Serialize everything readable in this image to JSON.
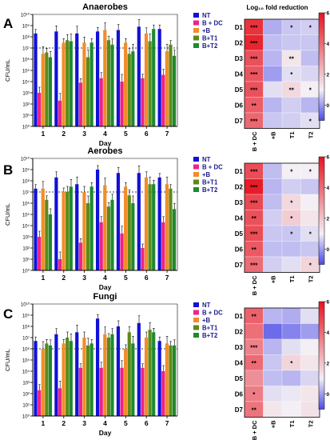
{
  "colors": {
    "NT": "#1111d6",
    "B + DC": "#ee2288",
    "+B": "#f28c28",
    "B+T1": "#5a8a1a",
    "B+T2": "#1e8a2e",
    "heat_low": "#4a4ae8",
    "heat_mid": "#f3eff4",
    "heat_high": "#e8131f"
  },
  "chart_data": [
    {
      "type": "bar",
      "panel_letter": "A",
      "title": "Anaerobes",
      "xlabel": "Day",
      "ylabel": "CFU/mL",
      "log_scale": true,
      "ylim": [
        1,
        10000000000
      ],
      "ytick_labels": [
        "10¹⁰",
        "10⁹",
        "10⁸",
        "10⁷",
        "10⁶",
        "10⁵",
        "10⁴",
        "10³",
        "10²",
        "10¹",
        "10⁰"
      ],
      "categories": [
        "1",
        "2",
        "3",
        "4",
        "5",
        "6",
        "7"
      ],
      "legend": [
        "NT",
        "B + DC",
        "+B",
        "B+T1",
        "B+T2"
      ],
      "legend_position": "top-right",
      "dashed_line_y": 10000000,
      "series": [
        {
          "name": "NT",
          "values": [
            200000000,
            300000000,
            200000000,
            300000000,
            400000000,
            800000000,
            500000000
          ]
        },
        {
          "name": "B + DC",
          "values": [
            1000,
            200,
            8000,
            20000,
            10000,
            20000,
            40000
          ]
        },
        {
          "name": "+B",
          "values": [
            3000000,
            30000000,
            30000000,
            400000000,
            30000000,
            200000000,
            5000000
          ]
        },
        {
          "name": "B+T1",
          "values": [
            4000000,
            50000000,
            1500000,
            50000000,
            3000000,
            40000000,
            20000000
          ]
        },
        {
          "name": "B+T2",
          "values": [
            1500000,
            40000000,
            30000000,
            20000000,
            5000000,
            500000000,
            2000000
          ]
        }
      ]
    },
    {
      "type": "bar",
      "panel_letter": "B",
      "title": "Aerobes",
      "xlabel": "Day",
      "ylabel": "CFU/mL",
      "log_scale": true,
      "ylim": [
        1,
        10000000000
      ],
      "ytick_labels": [
        "10¹⁰",
        "10⁹",
        "10⁸",
        "10⁷",
        "10⁶",
        "10⁵",
        "10⁴",
        "10³",
        "10²",
        "10¹",
        "10⁰"
      ],
      "categories": [
        "1",
        "2",
        "3",
        "4",
        "5",
        "6",
        "7"
      ],
      "legend": [
        "NT",
        "B + DC",
        "+B",
        "B+T1",
        "B+T2"
      ],
      "legend_position": "top-right",
      "dashed_line_y": 10000000,
      "series": [
        {
          "name": "NT",
          "values": [
            20000000,
            200000000,
            50000000,
            1000000000,
            500000000,
            500000000,
            200000000
          ]
        },
        {
          "name": "B + DC",
          "values": [
            1000,
            10,
            300,
            20000,
            2000,
            100,
            20000
          ]
        },
        {
          "name": "+B",
          "values": [
            20000000,
            10000000,
            10000000,
            40000000,
            30000000,
            200000000,
            50000000
          ]
        },
        {
          "name": "B+T1",
          "values": [
            2000000,
            10000000,
            1000000,
            500000,
            5000000,
            50000000,
            20000000
          ]
        },
        {
          "name": "B+T2",
          "values": [
            100000,
            30000000,
            30000000,
            2000000,
            1000000,
            50000000,
            300000
          ]
        }
      ]
    },
    {
      "type": "bar",
      "panel_letter": "C",
      "title": "Fungi",
      "xlabel": "Day",
      "ylabel": "CFU/mL",
      "log_scale": true,
      "ylim": [
        1,
        10000000000
      ],
      "ytick_labels": [
        "10¹⁰",
        "10⁹",
        "10⁸",
        "10⁷",
        "10⁶",
        "10⁵",
        "10⁴",
        "10³",
        "10²",
        "10¹",
        "10⁰"
      ],
      "categories": [
        "1",
        "2",
        "3",
        "4",
        "5",
        "6",
        "7"
      ],
      "legend": [
        "NT",
        "B + DC",
        "+B",
        "B+T1",
        "B+T2"
      ],
      "legend_position": "top-right",
      "dashed_line_y": 1000000,
      "series": [
        {
          "name": "NT",
          "values": [
            5000000,
            20000000,
            30000000,
            500000000,
            100000000,
            200000000,
            5000000
          ]
        },
        {
          "name": "B + DC",
          "values": [
            200,
            300,
            20000,
            20000,
            20000,
            20000,
            10000
          ]
        },
        {
          "name": "+B",
          "values": [
            1000000,
            3000000,
            10000000,
            20000000,
            1000000,
            10000000,
            3000000
          ]
        },
        {
          "name": "B+T1",
          "values": [
            3000000,
            10000000,
            2000000,
            10000000,
            30000000,
            50000000,
            2000000
          ]
        },
        {
          "name": "B+T2",
          "values": [
            2000000,
            5000000,
            3000000,
            20000000,
            3000000,
            30000000,
            2000000
          ]
        }
      ]
    },
    {
      "type": "heatmap",
      "title": "Log₁₀ fold reduction",
      "columns": [
        "B + DC",
        "+B",
        "T1",
        "T2"
      ],
      "rows": [
        "D1",
        "D2",
        "D3",
        "D4",
        "D5",
        "D6",
        "D7"
      ],
      "colorbar_ticks": [
        "6",
        "4",
        "2",
        "0"
      ],
      "vmin": -1,
      "vmax": 6,
      "values": [
        [
          5.3,
          0.2,
          0.5,
          0.6
        ],
        [
          5.6,
          0.4,
          0.5,
          0.5
        ],
        [
          4.6,
          0.3,
          1.2,
          0.4
        ],
        [
          4.5,
          0.0,
          0.8,
          0.7
        ],
        [
          4.6,
          0.8,
          1.5,
          1.0
        ],
        [
          4.3,
          0.3,
          0.6,
          0.3
        ],
        [
          4.1,
          0.5,
          0.6,
          0.8
        ]
      ],
      "annotations": [
        [
          "***",
          "",
          "*",
          "*"
        ],
        [
          "***",
          "",
          "",
          ""
        ],
        [
          "***",
          "",
          "**",
          ""
        ],
        [
          "***",
          "",
          "*",
          ""
        ],
        [
          "***",
          "",
          "**",
          "*"
        ],
        [
          "**",
          "",
          "",
          ""
        ],
        [
          "***",
          "",
          "",
          "*"
        ]
      ]
    },
    {
      "type": "heatmap",
      "title": "",
      "columns": [
        "B + DC",
        "+B",
        "T1",
        "T2"
      ],
      "rows": [
        "D1",
        "D2",
        "D3",
        "D4",
        "D5",
        "D6",
        "D7"
      ],
      "colorbar_ticks": [
        "6",
        "4",
        "2",
        "0"
      ],
      "vmin": -1,
      "vmax": 6,
      "values": [
        [
          4.7,
          0.4,
          1.0,
          1.0
        ],
        [
          5.8,
          0.3,
          0.6,
          0.5
        ],
        [
          4.8,
          0.4,
          1.5,
          1.0
        ],
        [
          4.6,
          0.6,
          1.8,
          1.2
        ],
        [
          4.7,
          0.5,
          0.5,
          0.8
        ],
        [
          4.4,
          0.4,
          0.4,
          0.5
        ],
        [
          4.0,
          0.6,
          0.8,
          1.6
        ]
      ],
      "annotations": [
        [
          "***",
          "",
          "*",
          "*"
        ],
        [
          "***",
          "",
          "",
          ""
        ],
        [
          "***",
          "",
          "*",
          ""
        ],
        [
          "**",
          "",
          "*",
          ""
        ],
        [
          "***",
          "",
          "*",
          "*"
        ],
        [
          "**",
          "",
          "",
          ""
        ],
        [
          "***",
          "",
          "",
          "*"
        ]
      ]
    },
    {
      "type": "heatmap",
      "title": "",
      "columns": [
        "B + DC",
        "+B",
        "T1",
        "T2"
      ],
      "rows": [
        "D1",
        "D2",
        "D3",
        "D4",
        "D5",
        "D6",
        "D7"
      ],
      "colorbar_ticks": [
        "6",
        "4",
        "2",
        "0"
      ],
      "vmin": -1,
      "vmax": 6,
      "values": [
        [
          4.2,
          0.3,
          0.2,
          0.8
        ],
        [
          3.9,
          -0.6,
          -0.3,
          0.0
        ],
        [
          3.5,
          0.3,
          0.8,
          1.0
        ],
        [
          4.0,
          0.5,
          1.6,
          1.2
        ],
        [
          3.2,
          0.4,
          0.3,
          0.7
        ],
        [
          3.6,
          0.8,
          0.9,
          1.2
        ],
        [
          3.8,
          1.2,
          1.0,
          1.3
        ]
      ],
      "annotations": [
        [
          "**",
          "",
          "",
          ""
        ],
        [
          "",
          "",
          "",
          ""
        ],
        [
          "***",
          "",
          "",
          ""
        ],
        [
          "**",
          "",
          "*",
          ""
        ],
        [
          "",
          "",
          "",
          ""
        ],
        [
          "*",
          "",
          "",
          ""
        ],
        [
          "**",
          "",
          "",
          ""
        ]
      ]
    }
  ]
}
